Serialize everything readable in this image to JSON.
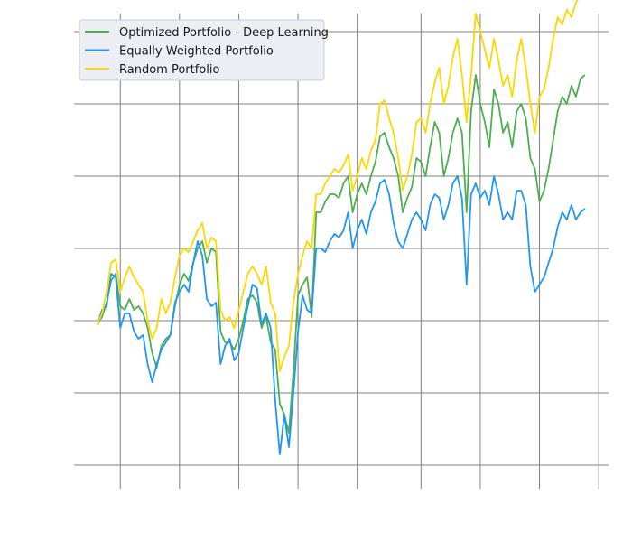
{
  "chart_data": {
    "type": "line",
    "title": "",
    "xlabel": "",
    "ylabel": "",
    "xlim": [
      0,
      107
    ],
    "ylim": [
      0.55,
      1.85
    ],
    "grid": true,
    "legend_position": "top-left",
    "x_gridlines": [
      5,
      18,
      31,
      44,
      57,
      71,
      84,
      97,
      110
    ],
    "y_gridlines": [
      0.6,
      0.8,
      1.0,
      1.2,
      1.4,
      1.6,
      1.8
    ],
    "series": [
      {
        "name": "Optimized Portfolio - Deep Learning",
        "color": "#4caf50",
        "x": [
          0,
          1,
          2,
          3,
          4,
          5,
          6,
          7,
          8,
          9,
          10,
          11,
          12,
          13,
          14,
          15,
          16,
          17,
          18,
          19,
          20,
          21,
          22,
          23,
          24,
          25,
          26,
          27,
          28,
          29,
          30,
          31,
          32,
          33,
          34,
          35,
          36,
          37,
          38,
          39,
          40,
          41,
          42,
          43,
          44,
          45,
          46,
          47,
          48,
          49,
          50,
          51,
          52,
          53,
          54,
          55,
          56,
          57,
          58,
          59,
          60,
          61,
          62,
          63,
          64,
          65,
          66,
          67,
          68,
          69,
          70,
          71,
          72,
          73,
          74,
          75,
          76,
          77,
          78,
          79,
          80,
          81,
          82,
          83,
          84,
          85,
          86,
          87,
          88,
          89,
          90,
          91,
          92,
          93,
          94,
          95,
          96,
          97,
          98,
          99,
          100,
          101,
          102,
          103,
          104,
          105,
          106,
          107
        ],
        "values": [
          0.99,
          1.01,
          1.05,
          1.11,
          1.13,
          1.04,
          1.03,
          1.06,
          1.03,
          1.04,
          1.02,
          0.98,
          0.91,
          0.87,
          0.93,
          0.95,
          0.96,
          1.04,
          1.1,
          1.13,
          1.11,
          1.16,
          1.2,
          1.22,
          1.16,
          1.2,
          1.19,
          0.97,
          0.94,
          0.94,
          0.92,
          0.95,
          1.0,
          1.06,
          1.07,
          1.05,
          0.98,
          1.01,
          0.94,
          0.92,
          0.77,
          0.74,
          0.69,
          0.86,
          1.07,
          1.1,
          1.12,
          1.01,
          1.3,
          1.3,
          1.33,
          1.35,
          1.35,
          1.34,
          1.38,
          1.4,
          1.3,
          1.35,
          1.38,
          1.35,
          1.4,
          1.44,
          1.51,
          1.52,
          1.48,
          1.45,
          1.4,
          1.3,
          1.34,
          1.37,
          1.45,
          1.44,
          1.4,
          1.48,
          1.55,
          1.52,
          1.4,
          1.45,
          1.52,
          1.56,
          1.52,
          1.3,
          1.58,
          1.68,
          1.6,
          1.55,
          1.48,
          1.64,
          1.6,
          1.52,
          1.55,
          1.48,
          1.58,
          1.6,
          1.56,
          1.45,
          1.42,
          1.33,
          1.36,
          1.42,
          1.5,
          1.58,
          1.62,
          1.6,
          1.65,
          1.62,
          1.67,
          1.68
        ]
      },
      {
        "name": "Equally Weighted Portfolio",
        "color": "#2196f3",
        "x": [
          0,
          1,
          2,
          3,
          4,
          5,
          6,
          7,
          8,
          9,
          10,
          11,
          12,
          13,
          14,
          15,
          16,
          17,
          18,
          19,
          20,
          21,
          22,
          23,
          24,
          25,
          26,
          27,
          28,
          29,
          30,
          31,
          32,
          33,
          34,
          35,
          36,
          37,
          38,
          39,
          40,
          41,
          42,
          43,
          44,
          45,
          46,
          47,
          48,
          49,
          50,
          51,
          52,
          53,
          54,
          55,
          56,
          57,
          58,
          59,
          60,
          61,
          62,
          63,
          64,
          65,
          66,
          67,
          68,
          69,
          70,
          71,
          72,
          73,
          74,
          75,
          76,
          77,
          78,
          79,
          80,
          81,
          82,
          83,
          84,
          85,
          86,
          87,
          88,
          89,
          90,
          91,
          92,
          93,
          94,
          95,
          96,
          97,
          98,
          99,
          100,
          101,
          102,
          103,
          104,
          105,
          106,
          107
        ],
        "values": [
          0.99,
          1.03,
          1.04,
          1.13,
          1.12,
          0.98,
          1.02,
          1.02,
          0.97,
          0.95,
          0.96,
          0.88,
          0.83,
          0.88,
          0.92,
          0.94,
          0.96,
          1.05,
          1.08,
          1.1,
          1.08,
          1.16,
          1.22,
          1.18,
          1.06,
          1.04,
          1.05,
          0.88,
          0.93,
          0.95,
          0.89,
          0.91,
          0.98,
          1.04,
          1.1,
          1.09,
          0.99,
          1.02,
          0.98,
          0.78,
          0.63,
          0.74,
          0.65,
          0.8,
          0.97,
          1.07,
          1.03,
          1.02,
          1.2,
          1.2,
          1.19,
          1.22,
          1.24,
          1.23,
          1.25,
          1.3,
          1.2,
          1.25,
          1.28,
          1.24,
          1.3,
          1.33,
          1.38,
          1.39,
          1.35,
          1.27,
          1.22,
          1.2,
          1.24,
          1.28,
          1.3,
          1.28,
          1.25,
          1.32,
          1.35,
          1.34,
          1.28,
          1.32,
          1.38,
          1.4,
          1.34,
          1.1,
          1.35,
          1.38,
          1.34,
          1.36,
          1.32,
          1.4,
          1.35,
          1.28,
          1.3,
          1.28,
          1.36,
          1.36,
          1.32,
          1.15,
          1.08,
          1.1,
          1.12,
          1.16,
          1.2,
          1.26,
          1.3,
          1.28,
          1.32,
          1.28,
          1.3,
          1.31
        ]
      },
      {
        "name": "Random Portfolio",
        "color": "#ffd700",
        "x": [
          0,
          1,
          2,
          3,
          4,
          5,
          6,
          7,
          8,
          9,
          10,
          11,
          12,
          13,
          14,
          15,
          16,
          17,
          18,
          19,
          20,
          21,
          22,
          23,
          24,
          25,
          26,
          27,
          28,
          29,
          30,
          31,
          32,
          33,
          34,
          35,
          36,
          37,
          38,
          39,
          40,
          41,
          42,
          43,
          44,
          45,
          46,
          47,
          48,
          49,
          50,
          51,
          52,
          53,
          54,
          55,
          56,
          57,
          58,
          59,
          60,
          61,
          62,
          63,
          64,
          65,
          66,
          67,
          68,
          69,
          70,
          71,
          72,
          73,
          74,
          75,
          76,
          77,
          78,
          79,
          80,
          81,
          82,
          83,
          84,
          85,
          86,
          87,
          88,
          89,
          90,
          91,
          92,
          93,
          94,
          95,
          96,
          97,
          98,
          99,
          100,
          101,
          102,
          103,
          104,
          105,
          106,
          107
        ],
        "values": [
          0.99,
          1.02,
          1.08,
          1.16,
          1.17,
          1.08,
          1.12,
          1.15,
          1.12,
          1.1,
          1.08,
          1.0,
          0.95,
          0.98,
          1.06,
          1.02,
          1.05,
          1.12,
          1.18,
          1.2,
          1.19,
          1.22,
          1.25,
          1.27,
          1.2,
          1.23,
          1.22,
          1.03,
          1.0,
          1.01,
          0.98,
          1.03,
          1.08,
          1.13,
          1.15,
          1.13,
          1.1,
          1.15,
          1.05,
          1.02,
          0.86,
          0.9,
          0.93,
          1.05,
          1.13,
          1.18,
          1.22,
          1.2,
          1.35,
          1.35,
          1.38,
          1.4,
          1.42,
          1.41,
          1.43,
          1.46,
          1.36,
          1.4,
          1.45,
          1.42,
          1.47,
          1.5,
          1.6,
          1.61,
          1.56,
          1.52,
          1.45,
          1.36,
          1.4,
          1.46,
          1.55,
          1.56,
          1.52,
          1.6,
          1.66,
          1.7,
          1.6,
          1.65,
          1.73,
          1.78,
          1.68,
          1.55,
          1.68,
          1.85,
          1.8,
          1.75,
          1.7,
          1.78,
          1.72,
          1.65,
          1.68,
          1.62,
          1.72,
          1.78,
          1.7,
          1.6,
          1.52,
          1.62,
          1.64,
          1.7,
          1.78,
          1.84,
          1.82,
          1.86,
          1.84,
          1.88,
          1.9,
          1.93
        ]
      }
    ]
  }
}
